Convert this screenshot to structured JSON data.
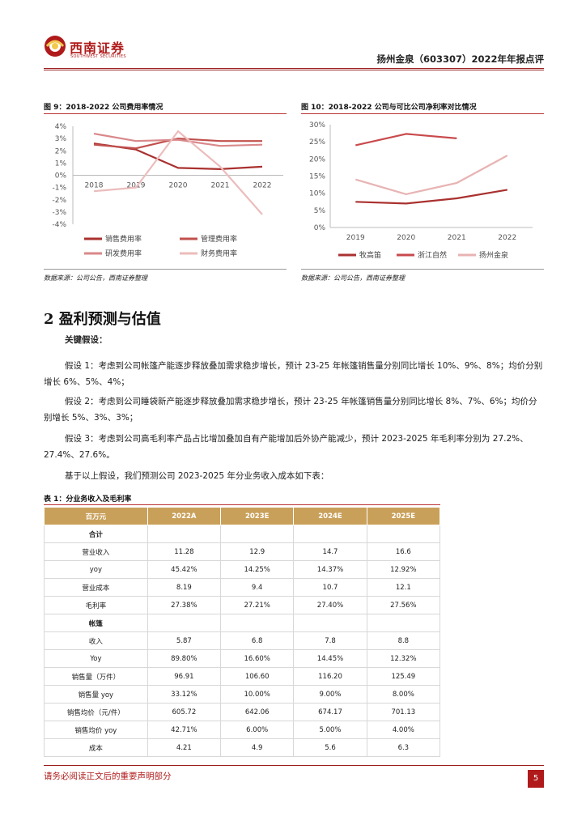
{
  "header": {
    "logo_cn": "西南证券",
    "logo_en": "SOUTHWEST SECURITIES",
    "report_title": "扬州金泉（603307）2022年年报点评"
  },
  "figure9": {
    "title": "图 9：2018-2022 公司费用率情况",
    "source": "数据来源：公司公告，西南证券整理"
  },
  "figure10": {
    "title": "图 10：2018-2022 公司与可比公司净利率对比情况",
    "source": "数据来源：公司公告，西南证券整理"
  },
  "chart_data": [
    {
      "type": "line",
      "categories": [
        "2018",
        "2019",
        "2020",
        "2021",
        "2022"
      ],
      "y_ticks": [
        "4%",
        "3%",
        "2%",
        "1%",
        "0%",
        "-1%",
        "-2%",
        "-3%",
        "-4%"
      ],
      "ylim": [
        -4,
        4
      ],
      "y_unit": "%",
      "grid": false,
      "legend_position": "bottom",
      "series": [
        {
          "name": "销售费用率",
          "color": "#a9312f",
          "values": [
            2.6,
            2.1,
            0.6,
            0.5,
            0.7
          ]
        },
        {
          "name": "管理费用率",
          "color": "#c0504d",
          "values": [
            2.5,
            2.2,
            3.0,
            2.8,
            2.8
          ]
        },
        {
          "name": "研发费用率",
          "color": "#d9888a",
          "values": [
            3.4,
            2.8,
            2.9,
            2.4,
            2.5
          ]
        },
        {
          "name": "财务费用率",
          "color": "#ecbcbc",
          "values": [
            -1.3,
            -1.0,
            3.6,
            0.7,
            -3.2
          ]
        }
      ]
    },
    {
      "type": "line",
      "categories": [
        "2019",
        "2020",
        "2021",
        "2022"
      ],
      "y_ticks": [
        "30%",
        "25%",
        "20%",
        "15%",
        "10%",
        "5%",
        "0%"
      ],
      "ylim": [
        0,
        30
      ],
      "y_unit": "%",
      "grid": false,
      "legend_position": "bottom",
      "series": [
        {
          "name": "牧高笛",
          "color": "#a9312f",
          "values": [
            7.5,
            7.0,
            8.5,
            11.0
          ]
        },
        {
          "name": "浙江自然",
          "color": "#c94a4c",
          "values": [
            24.0,
            27.3,
            26.0,
            null
          ]
        },
        {
          "name": "扬州金泉",
          "color": "#e8b3b3",
          "values": [
            14.0,
            9.7,
            13.0,
            21.0
          ]
        }
      ]
    }
  ],
  "section": {
    "title": "2 盈利预测与估值",
    "key_assumptions_label": "关键假设：",
    "p1": "假设 1：考虑到公司帐篷产能逐步释放叠加需求稳步增长，预计 23-25 年帐篷销售量分别同比增长 10%、9%、8%；均价分别增长 6%、5%、4%；",
    "p2": "假设 2：考虑到公司睡袋新产能逐步释放叠加需求稳步增长，预计 23-25 年帐篷销售量分别同比增长 8%、7%、6%；均价分别增长 5%、3%、3%；",
    "p3": "假设 3：考虑到公司高毛利率产品占比增加叠加自有产能增加后外协产能减少，预计 2023-2025 年毛利率分别为 27.2%、27.4%、27.6%。",
    "p4": "基于以上假设，我们预测公司 2023-2025 年分业务收入成本如下表："
  },
  "table": {
    "title": "表 1：分业务收入及毛利率",
    "headers": [
      "百万元",
      "2022A",
      "2023E",
      "2024E",
      "2025E"
    ],
    "rows": [
      {
        "label": "合计",
        "bold": true,
        "cells": [
          "",
          "",
          "",
          ""
        ]
      },
      {
        "label": "营业收入",
        "cells": [
          "11.28",
          "12.9",
          "14.7",
          "16.6"
        ]
      },
      {
        "label": "yoy",
        "cells": [
          "45.42%",
          "14.25%",
          "14.37%",
          "12.92%"
        ]
      },
      {
        "label": "营业成本",
        "cells": [
          "8.19",
          "9.4",
          "10.7",
          "12.1"
        ]
      },
      {
        "label": "毛利率",
        "cells": [
          "27.38%",
          "27.21%",
          "27.40%",
          "27.56%"
        ]
      },
      {
        "label": "帐篷",
        "bold": true,
        "cells": [
          "",
          "",
          "",
          ""
        ]
      },
      {
        "label": "收入",
        "cells": [
          "5.87",
          "6.8",
          "7.8",
          "8.8"
        ]
      },
      {
        "label": "Yoy",
        "cells": [
          "89.80%",
          "16.60%",
          "14.45%",
          "12.32%"
        ]
      },
      {
        "label": "销售量（万件）",
        "cells": [
          "96.91",
          "106.60",
          "116.20",
          "125.49"
        ]
      },
      {
        "label": "销售量 yoy",
        "cells": [
          "33.12%",
          "10.00%",
          "9.00%",
          "8.00%"
        ]
      },
      {
        "label": "销售均价（元/件）",
        "cells": [
          "605.72",
          "642.06",
          "674.17",
          "701.13"
        ]
      },
      {
        "label": "销售均价 yoy",
        "cells": [
          "42.71%",
          "6.00%",
          "5.00%",
          "4.00%"
        ]
      },
      {
        "label": "成本",
        "cells": [
          "4.21",
          "4.9",
          "5.6",
          "6.3"
        ]
      }
    ]
  },
  "footer": {
    "notice": "请务必阅读正文后的重要声明部分",
    "page": "5"
  }
}
